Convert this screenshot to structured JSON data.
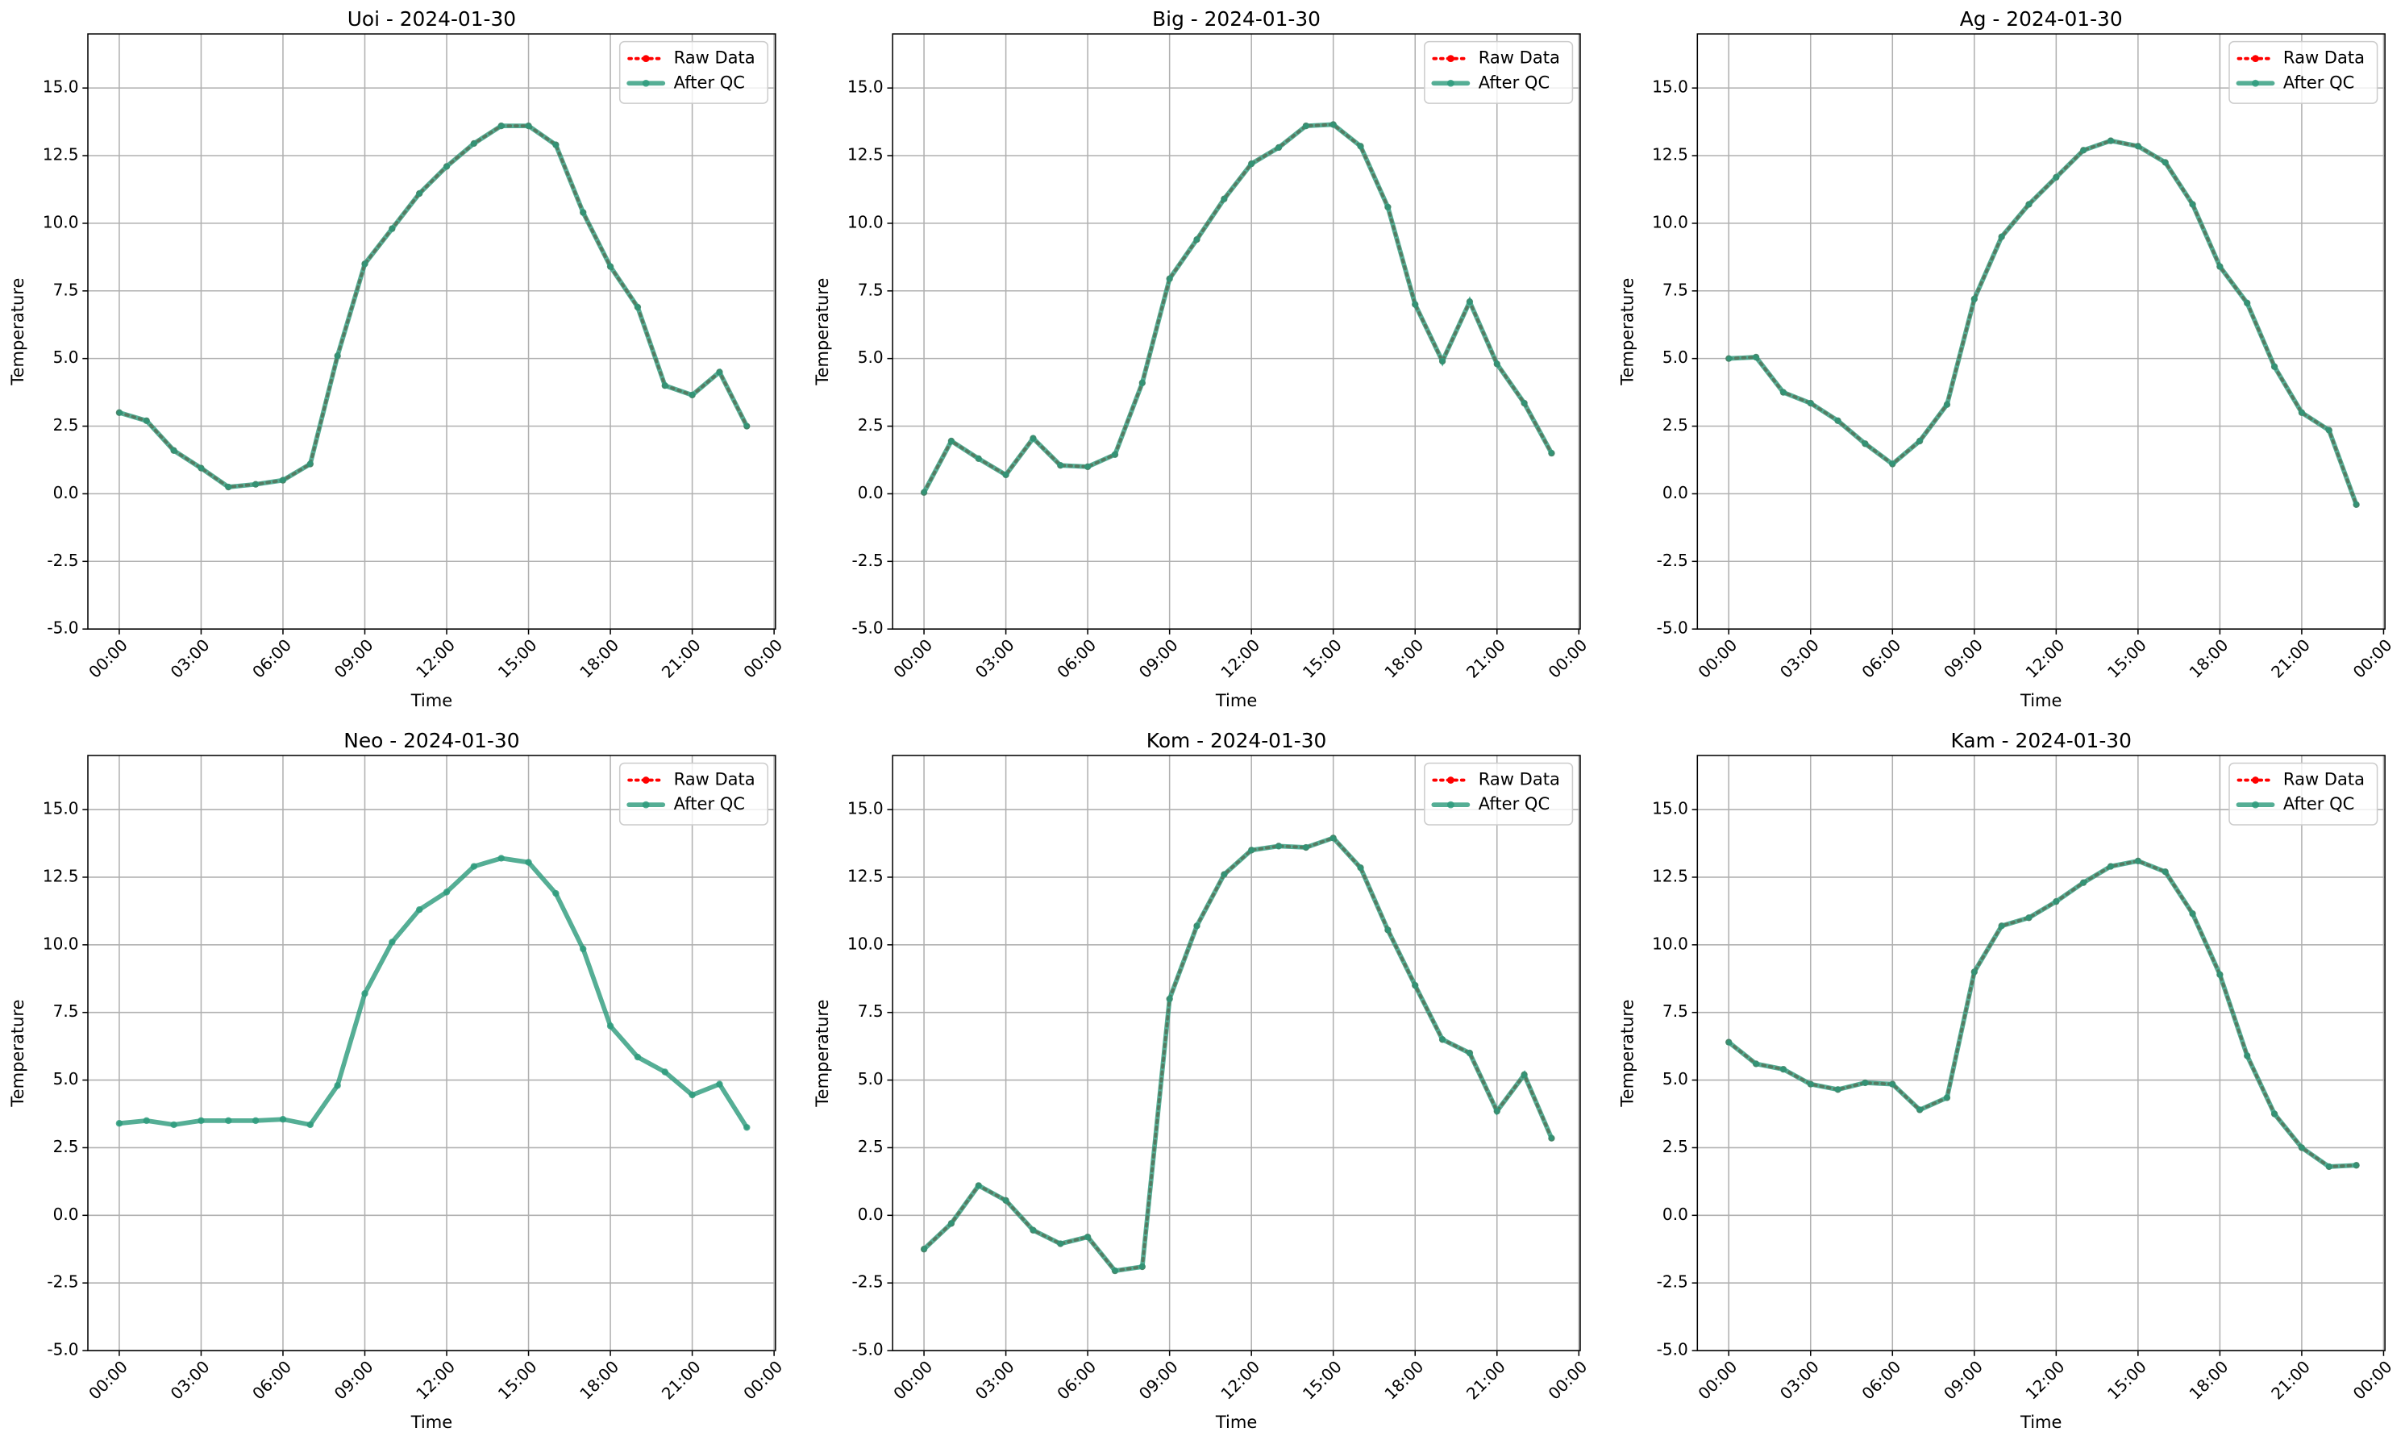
{
  "chart_data": [
    {
      "type": "line",
      "title": "Uoi - 2024-01-30",
      "xlabel": "Time",
      "ylabel": "Temperature",
      "x": [
        0,
        1,
        2,
        3,
        4,
        5,
        6,
        7,
        8,
        9,
        10,
        11,
        12,
        13,
        14,
        15,
        16,
        17,
        18,
        19,
        20,
        21,
        22,
        23
      ],
      "series": [
        {
          "name": "Raw Data",
          "color": "#ff0000",
          "values": [
            3.0,
            2.7,
            1.6,
            0.95,
            0.25,
            0.35,
            0.5,
            1.1,
            5.1,
            8.5,
            9.8,
            11.1,
            12.1,
            12.95,
            13.6,
            13.6,
            12.9,
            10.4,
            8.4,
            6.9,
            4.0,
            3.65,
            4.5,
            2.5
          ]
        },
        {
          "name": "After QC",
          "color": "#2a9a7a",
          "values": [
            3.0,
            2.7,
            1.6,
            0.95,
            0.25,
            0.35,
            0.5,
            1.1,
            5.1,
            8.5,
            9.8,
            11.1,
            12.1,
            12.95,
            13.6,
            13.6,
            12.9,
            10.4,
            8.4,
            6.9,
            4.0,
            3.65,
            4.5,
            2.5
          ]
        }
      ],
      "xlim": [
        -1.15,
        24.05
      ],
      "ylim": [
        -5,
        17
      ],
      "xticks": [
        {
          "value": 0,
          "label": "00:00"
        },
        {
          "value": 3,
          "label": "03:00"
        },
        {
          "value": 6,
          "label": "06:00"
        },
        {
          "value": 9,
          "label": "09:00"
        },
        {
          "value": 12,
          "label": "12:00"
        },
        {
          "value": 15,
          "label": "15:00"
        },
        {
          "value": 18,
          "label": "18:00"
        },
        {
          "value": 21,
          "label": "21:00"
        },
        {
          "value": 24,
          "label": "00:00"
        }
      ],
      "yticks": [
        {
          "value": -5,
          "label": "-5.0"
        },
        -2.5,
        {
          "value": 0,
          "label": "0.0"
        },
        2.5,
        {
          "value": 5,
          "label": "5.0"
        },
        7.5,
        {
          "value": 10,
          "label": "10.0"
        },
        12.5,
        {
          "value": 15,
          "label": "15.0"
        }
      ],
      "grid": true,
      "legend": "upper right"
    },
    {
      "type": "line",
      "title": "Big - 2024-01-30",
      "xlabel": "Time",
      "ylabel": "Temperature",
      "x": [
        0,
        1,
        2,
        3,
        4,
        5,
        6,
        7,
        8,
        9,
        10,
        11,
        12,
        13,
        14,
        15,
        16,
        17,
        18,
        19,
        20,
        21,
        22,
        23
      ],
      "series": [
        {
          "name": "Raw Data",
          "color": "#ff0000",
          "values": [
            0.05,
            1.95,
            1.3,
            0.7,
            2.05,
            1.05,
            1.0,
            1.45,
            4.1,
            7.95,
            9.4,
            10.9,
            12.2,
            12.8,
            13.6,
            13.65,
            12.85,
            10.6,
            7.0,
            4.9,
            7.1,
            4.8,
            3.35,
            1.5
          ]
        },
        {
          "name": "After QC",
          "color": "#2a9a7a",
          "values": [
            0.05,
            1.95,
            1.3,
            0.7,
            2.05,
            1.05,
            1.0,
            1.45,
            4.1,
            7.95,
            9.4,
            10.9,
            12.2,
            12.8,
            13.6,
            13.65,
            12.85,
            10.6,
            7.0,
            4.9,
            7.1,
            4.8,
            3.35,
            1.5
          ]
        }
      ],
      "xlim": [
        -1.15,
        24.05
      ],
      "ylim": [
        -5,
        17
      ],
      "xticks": [
        {
          "value": 0,
          "label": "00:00"
        },
        {
          "value": 3,
          "label": "03:00"
        },
        {
          "value": 6,
          "label": "06:00"
        },
        {
          "value": 9,
          "label": "09:00"
        },
        {
          "value": 12,
          "label": "12:00"
        },
        {
          "value": 15,
          "label": "15:00"
        },
        {
          "value": 18,
          "label": "18:00"
        },
        {
          "value": 21,
          "label": "21:00"
        },
        {
          "value": 24,
          "label": "00:00"
        }
      ],
      "yticks": [
        {
          "value": -5,
          "label": "-5.0"
        },
        -2.5,
        {
          "value": 0,
          "label": "0.0"
        },
        2.5,
        {
          "value": 5,
          "label": "5.0"
        },
        7.5,
        {
          "value": 10,
          "label": "10.0"
        },
        12.5,
        {
          "value": 15,
          "label": "15.0"
        }
      ],
      "grid": true,
      "legend": "upper right"
    },
    {
      "type": "line",
      "title": "Ag - 2024-01-30",
      "xlabel": "Time",
      "ylabel": "Temperature",
      "x": [
        0,
        1,
        2,
        3,
        4,
        5,
        6,
        7,
        8,
        9,
        10,
        11,
        12,
        13,
        14,
        15,
        16,
        17,
        18,
        19,
        20,
        21,
        22,
        23
      ],
      "series": [
        {
          "name": "Raw Data",
          "color": "#ff0000",
          "values": [
            5.0,
            5.05,
            3.75,
            3.35,
            2.7,
            1.85,
            1.1,
            1.95,
            3.3,
            7.2,
            9.5,
            10.7,
            11.7,
            12.7,
            13.05,
            12.85,
            12.25,
            10.7,
            8.4,
            7.05,
            4.7,
            3.0,
            2.35,
            -0.4
          ]
        },
        {
          "name": "After QC",
          "color": "#2a9a7a",
          "values": [
            5.0,
            5.05,
            3.75,
            3.35,
            2.7,
            1.85,
            1.1,
            1.95,
            3.3,
            7.2,
            9.5,
            10.7,
            11.7,
            12.7,
            13.05,
            12.85,
            12.25,
            10.7,
            8.4,
            7.05,
            4.7,
            3.0,
            2.35,
            -0.4
          ]
        }
      ],
      "xlim": [
        -1.15,
        24.05
      ],
      "ylim": [
        -5,
        17
      ],
      "xticks": [
        {
          "value": 0,
          "label": "00:00"
        },
        {
          "value": 3,
          "label": "03:00"
        },
        {
          "value": 6,
          "label": "06:00"
        },
        {
          "value": 9,
          "label": "09:00"
        },
        {
          "value": 12,
          "label": "12:00"
        },
        {
          "value": 15,
          "label": "15:00"
        },
        {
          "value": 18,
          "label": "18:00"
        },
        {
          "value": 21,
          "label": "21:00"
        },
        {
          "value": 24,
          "label": "00:00"
        }
      ],
      "yticks": [
        {
          "value": -5,
          "label": "-5.0"
        },
        -2.5,
        {
          "value": 0,
          "label": "0.0"
        },
        2.5,
        {
          "value": 5,
          "label": "5.0"
        },
        7.5,
        {
          "value": 10,
          "label": "10.0"
        },
        12.5,
        {
          "value": 15,
          "label": "15.0"
        }
      ],
      "grid": true,
      "legend": "upper right"
    },
    {
      "type": "line",
      "title": "Neo - 2024-01-30",
      "xlabel": "Time",
      "ylabel": "Temperature",
      "x": [
        0,
        1,
        2,
        3,
        4,
        5,
        6,
        7,
        8,
        9,
        10,
        11,
        12,
        13,
        14,
        15,
        16,
        17,
        18,
        19,
        20,
        21,
        22,
        23
      ],
      "series": [
        {
          "name": "Raw Data",
          "color": "#ff0000",
          "values": [
            null,
            null,
            null,
            null,
            null,
            null,
            null,
            null,
            null,
            null,
            null,
            null,
            null,
            null,
            null,
            null,
            null,
            null,
            null,
            null,
            null,
            null,
            null,
            null
          ]
        },
        {
          "name": "After QC",
          "color": "#2a9a7a",
          "values": [
            3.4,
            3.5,
            3.35,
            3.5,
            3.5,
            3.5,
            3.55,
            3.35,
            4.8,
            8.2,
            10.1,
            11.3,
            11.95,
            12.9,
            13.2,
            13.05,
            11.9,
            9.85,
            7.0,
            5.85,
            5.3,
            4.45,
            4.85,
            3.25
          ]
        }
      ],
      "xlim": [
        -1.15,
        24.05
      ],
      "ylim": [
        -5,
        17
      ],
      "xticks": [
        {
          "value": 0,
          "label": "00:00"
        },
        {
          "value": 3,
          "label": "03:00"
        },
        {
          "value": 6,
          "label": "06:00"
        },
        {
          "value": 9,
          "label": "09:00"
        },
        {
          "value": 12,
          "label": "12:00"
        },
        {
          "value": 15,
          "label": "15:00"
        },
        {
          "value": 18,
          "label": "18:00"
        },
        {
          "value": 21,
          "label": "21:00"
        },
        {
          "value": 24,
          "label": "00:00"
        }
      ],
      "yticks": [
        {
          "value": -5,
          "label": "-5.0"
        },
        -2.5,
        {
          "value": 0,
          "label": "0.0"
        },
        2.5,
        {
          "value": 5,
          "label": "5.0"
        },
        7.5,
        {
          "value": 10,
          "label": "10.0"
        },
        12.5,
        {
          "value": 15,
          "label": "15.0"
        }
      ],
      "grid": true,
      "legend": "upper right"
    },
    {
      "type": "line",
      "title": "Kom - 2024-01-30",
      "xlabel": "Time",
      "ylabel": "Temperature",
      "x": [
        0,
        1,
        2,
        3,
        4,
        5,
        6,
        7,
        8,
        9,
        10,
        11,
        12,
        13,
        14,
        15,
        16,
        17,
        18,
        19,
        20,
        21,
        22,
        23
      ],
      "series": [
        {
          "name": "Raw Data",
          "color": "#ff0000",
          "values": [
            -1.25,
            -0.3,
            1.1,
            0.55,
            -0.55,
            -1.05,
            -0.8,
            -2.05,
            -1.9,
            8.0,
            10.7,
            12.6,
            13.5,
            13.65,
            13.6,
            13.95,
            12.85,
            10.55,
            8.5,
            6.5,
            6.0,
            3.85,
            5.2,
            2.85
          ]
        },
        {
          "name": "After QC",
          "color": "#2a9a7a",
          "values": [
            -1.25,
            -0.3,
            1.1,
            0.55,
            -0.55,
            -1.05,
            -0.8,
            -2.05,
            -1.9,
            8.0,
            10.7,
            12.6,
            13.5,
            13.65,
            13.6,
            13.95,
            12.85,
            10.55,
            8.5,
            6.5,
            6.0,
            3.85,
            5.2,
            2.85
          ]
        }
      ],
      "xlim": [
        -1.15,
        24.05
      ],
      "ylim": [
        -5,
        17
      ],
      "xticks": [
        {
          "value": 0,
          "label": "00:00"
        },
        {
          "value": 3,
          "label": "03:00"
        },
        {
          "value": 6,
          "label": "06:00"
        },
        {
          "value": 9,
          "label": "09:00"
        },
        {
          "value": 12,
          "label": "12:00"
        },
        {
          "value": 15,
          "label": "15:00"
        },
        {
          "value": 18,
          "label": "18:00"
        },
        {
          "value": 21,
          "label": "21:00"
        },
        {
          "value": 24,
          "label": "00:00"
        }
      ],
      "yticks": [
        {
          "value": -5,
          "label": "-5.0"
        },
        -2.5,
        {
          "value": 0,
          "label": "0.0"
        },
        2.5,
        {
          "value": 5,
          "label": "5.0"
        },
        7.5,
        {
          "value": 10,
          "label": "10.0"
        },
        12.5,
        {
          "value": 15,
          "label": "15.0"
        }
      ],
      "grid": true,
      "legend": "upper right"
    },
    {
      "type": "line",
      "title": "Kam - 2024-01-30",
      "xlabel": "Time",
      "ylabel": "Temperature",
      "x": [
        0,
        1,
        2,
        3,
        4,
        5,
        6,
        7,
        8,
        9,
        10,
        11,
        12,
        13,
        14,
        15,
        16,
        17,
        18,
        19,
        20,
        21,
        22,
        23
      ],
      "series": [
        {
          "name": "Raw Data",
          "color": "#ff0000",
          "values": [
            6.4,
            5.6,
            5.4,
            4.85,
            4.65,
            4.9,
            4.85,
            3.9,
            4.35,
            9.0,
            10.7,
            11.0,
            11.6,
            12.3,
            12.9,
            13.1,
            12.7,
            11.15,
            8.9,
            5.9,
            3.75,
            2.5,
            1.8,
            1.85
          ]
        },
        {
          "name": "After QC",
          "color": "#2a9a7a",
          "values": [
            6.4,
            5.6,
            5.4,
            4.85,
            4.65,
            4.9,
            4.85,
            3.9,
            4.35,
            9.0,
            10.7,
            11.0,
            11.6,
            12.3,
            12.9,
            13.1,
            12.7,
            11.15,
            8.9,
            5.9,
            3.75,
            2.5,
            1.8,
            1.85
          ]
        }
      ],
      "xlim": [
        -1.15,
        24.05
      ],
      "ylim": [
        -5,
        17
      ],
      "xticks": [
        {
          "value": 0,
          "label": "00:00"
        },
        {
          "value": 3,
          "label": "03:00"
        },
        {
          "value": 6,
          "label": "06:00"
        },
        {
          "value": 9,
          "label": "09:00"
        },
        {
          "value": 12,
          "label": "12:00"
        },
        {
          "value": 15,
          "label": "15:00"
        },
        {
          "value": 18,
          "label": "18:00"
        },
        {
          "value": 21,
          "label": "21:00"
        },
        {
          "value": 24,
          "label": "00:00"
        }
      ],
      "yticks": [
        {
          "value": -5,
          "label": "-5.0"
        },
        -2.5,
        {
          "value": 0,
          "label": "0.0"
        },
        2.5,
        {
          "value": 5,
          "label": "5.0"
        },
        7.5,
        {
          "value": 10,
          "label": "10.0"
        },
        12.5,
        {
          "value": 15,
          "label": "15.0"
        }
      ],
      "grid": true,
      "legend": "upper right"
    }
  ]
}
